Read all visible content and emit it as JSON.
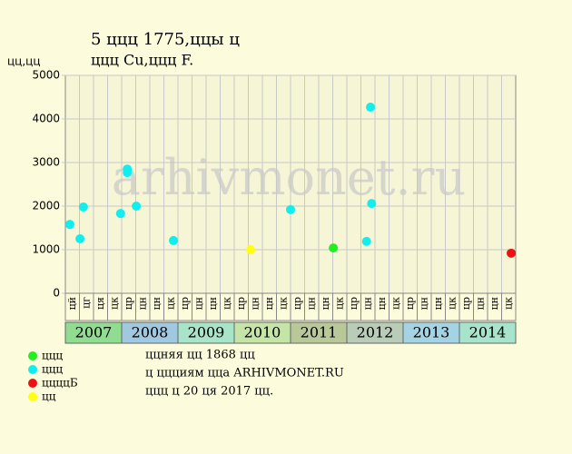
{
  "chart_data": {
    "type": "scatter",
    "title": "5 ццц 1775,ццы ц",
    "subtitle": "ццц Cu,ццц F.",
    "ylabel": "цц,цц",
    "watermark": "arhivmonet.ru",
    "xlim": [
      2007,
      2015
    ],
    "ylim": [
      0,
      5000
    ],
    "yticks": [
      0,
      1000,
      2000,
      3000,
      4000,
      5000
    ],
    "grid": true,
    "months": [
      "цй",
      "цг",
      "ця",
      "цк",
      "цр",
      "цн",
      "цн",
      "цк",
      "цр",
      "цн",
      "цн",
      "цк",
      "цр",
      "цн",
      "цн",
      "цк",
      "цр",
      "цн",
      "цн",
      "цк",
      "цр",
      "цн",
      "цн",
      "цк",
      "цр",
      "цн",
      "цн",
      "цк",
      "цр",
      "цн",
      "цн",
      "цк"
    ],
    "years": [
      {
        "label": "2007",
        "color": "#90dc90"
      },
      {
        "label": "2008",
        "color": "#a0c8e0"
      },
      {
        "label": "2009",
        "color": "#a8e4c8"
      },
      {
        "label": "2010",
        "color": "#c4e4a8"
      },
      {
        "label": "2011",
        "color": "#b8c898"
      },
      {
        "label": "2012",
        "color": "#b8ccb8"
      },
      {
        "label": "2013",
        "color": "#a4d4e4"
      },
      {
        "label": "2014",
        "color": "#a8e4cc"
      }
    ],
    "series": [
      {
        "name": "ццц",
        "color": "#22ee22",
        "x": [
          2011.76
        ],
        "values": [
          1040
        ]
      },
      {
        "name": "ццц",
        "color": "#11eeee",
        "x": [
          2007.08,
          2007.26,
          2007.32,
          2007.98,
          2008.1,
          2008.1,
          2008.26,
          2008.92,
          2011.0,
          2012.35,
          2012.42,
          2012.44
        ],
        "values": [
          1580,
          1250,
          1980,
          1830,
          2850,
          2770,
          2000,
          1210,
          1920,
          1190,
          4270,
          2060
        ]
      },
      {
        "name": "ццццБ",
        "color": "#ee1111",
        "x": [
          2014.92
        ],
        "values": [
          920
        ]
      },
      {
        "name": "цц",
        "color": "#ffff11",
        "x": [
          2010.29
        ],
        "values": [
          1000
        ]
      }
    ],
    "notes": [
      "ццняя цц 1868 цц",
      "ц ццциям цца ARHIVMONET.RU",
      "ццц ц 20 ця 2017 цц."
    ]
  }
}
